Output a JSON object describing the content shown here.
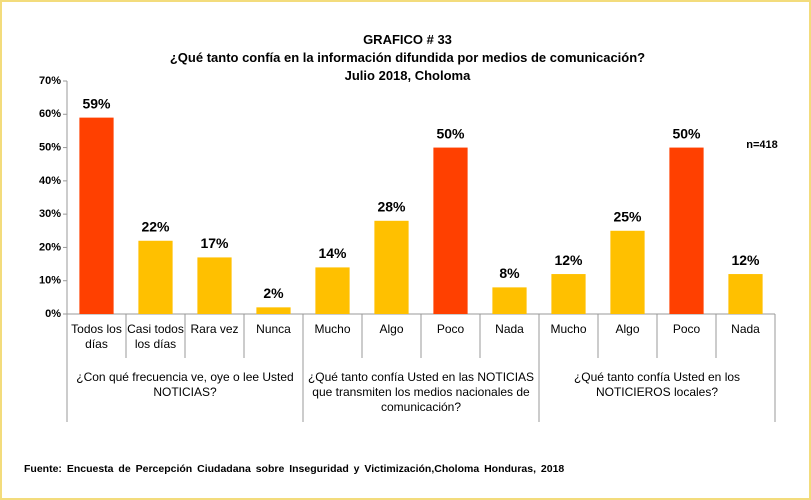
{
  "chart_data": {
    "type": "bar",
    "title": "GRAFICO # 33",
    "subtitle": "¿Qué tanto confía en la información difundida por medios de comunicación?",
    "subtitle2": "Julio 2018, Choloma",
    "annotation": "n=418",
    "source": "Fuente: Encuesta de Percepción Ciudadana sobre Inseguridad y Victimización,Choloma Honduras, 2018",
    "ylim": [
      0,
      70
    ],
    "yticks": [
      {
        "value": 0,
        "label": "0%"
      },
      {
        "value": 10,
        "label": "10%"
      },
      {
        "value": 20,
        "label": "20%"
      },
      {
        "value": 30,
        "label": "30%"
      },
      {
        "value": 40,
        "label": "40%"
      },
      {
        "value": 50,
        "label": "50%"
      },
      {
        "value": 60,
        "label": "60%"
      },
      {
        "value": 70,
        "label": "70%"
      }
    ],
    "groups": [
      {
        "label": "¿Con qué frecuencia ve, oye o lee Usted NOTICIAS?",
        "categories": [
          "Todos los días",
          "Casi todos los días",
          "Rara vez",
          "Nunca"
        ],
        "values": [
          59,
          22,
          17,
          2
        ],
        "value_labels": [
          "59%",
          "22%",
          "17%",
          "2%"
        ],
        "colors": [
          "#ff4000",
          "#ffc000",
          "#ffc000",
          "#ffc000"
        ]
      },
      {
        "label": "¿Qué tanto confía Usted en las NOTICIAS que transmiten los medios nacionales de comunicación?",
        "categories": [
          "Mucho",
          "Algo",
          "Poco",
          "Nada"
        ],
        "values": [
          14,
          28,
          50,
          8
        ],
        "value_labels": [
          "14%",
          "28%",
          "50%",
          "8%"
        ],
        "colors": [
          "#ffc000",
          "#ffc000",
          "#ff4000",
          "#ffc000"
        ]
      },
      {
        "label": "¿Qué tanto confía Usted en los NOTICIEROS locales?",
        "categories": [
          "Mucho",
          "Algo",
          "Poco",
          "Nada"
        ],
        "values": [
          12,
          25,
          50,
          12
        ],
        "value_labels": [
          "12%",
          "25%",
          "50%",
          "12%"
        ],
        "colors": [
          "#ffc000",
          "#ffc000",
          "#ff4000",
          "#ffc000"
        ]
      }
    ]
  }
}
